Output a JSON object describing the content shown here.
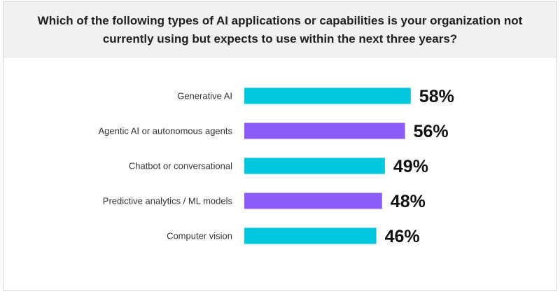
{
  "chart_data": {
    "type": "bar",
    "orientation": "horizontal",
    "title": "Which of the following types of AI applications or capabilities is your organization not currently using but expects to use within the next three years?",
    "categories": [
      "Generative AI",
      "Agentic AI or autonomous agents",
      "Chatbot or conversational",
      "Predictive analytics / ML models",
      "Computer vision"
    ],
    "values": [
      58,
      56,
      49,
      48,
      46
    ],
    "value_labels": [
      "58%",
      "56%",
      "49%",
      "48%",
      "46%"
    ],
    "bar_colors": [
      "#00c8dc",
      "#8b5cf6",
      "#00c8dc",
      "#8b5cf6",
      "#00c8dc"
    ],
    "unit": "%",
    "xlim": [
      0,
      100
    ],
    "xlabel": "",
    "ylabel": "",
    "grid": false,
    "legend": "none"
  }
}
